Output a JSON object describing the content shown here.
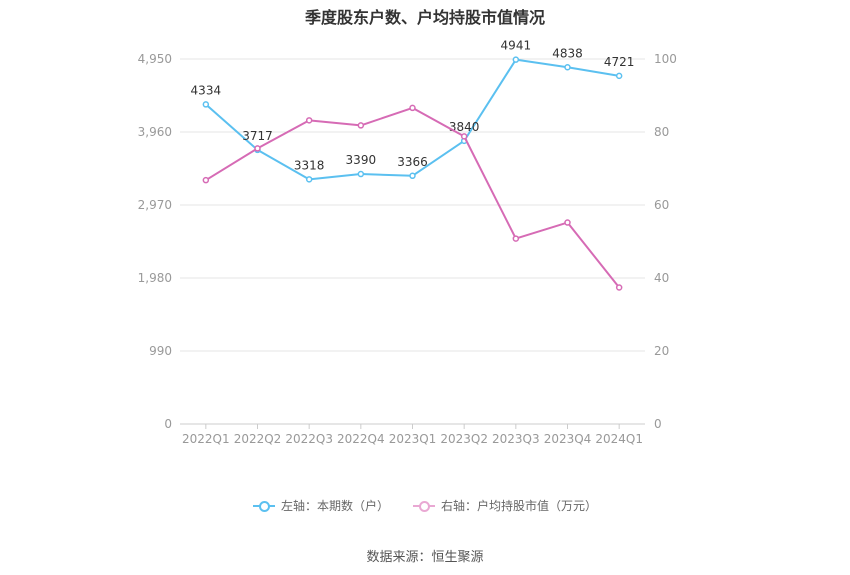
{
  "chart_data": {
    "type": "line",
    "title": "季度股东户数、户均持股市值情况",
    "categories": [
      "2022Q1",
      "2022Q2",
      "2022Q3",
      "2022Q4",
      "2023Q1",
      "2023Q2",
      "2023Q3",
      "2023Q4",
      "2024Q1"
    ],
    "left_axis": {
      "ticks": [
        "0",
        "990",
        "1,980",
        "2,970",
        "3,960",
        "4,950"
      ],
      "min": 0,
      "max": 4950
    },
    "right_axis": {
      "ticks": [
        "0",
        "20",
        "40",
        "60",
        "80",
        "100"
      ],
      "min": 0,
      "max": 100
    },
    "grid": true,
    "legend_position": "bottom",
    "series": [
      {
        "name": "左轴：本期数（户）",
        "axis": "left",
        "color": "#5bc0f0",
        "values": [
          4334,
          3717,
          3318,
          3390,
          3366,
          3840,
          4941,
          4838,
          4721
        ],
        "labels": [
          "4334",
          "3717",
          "3318",
          "3390",
          "3366",
          "3840",
          "4941",
          "4838",
          "4721"
        ]
      },
      {
        "name": "右轴：户均持股市值（万元）",
        "axis": "right",
        "color": "#d66bb5",
        "values": [
          66.8,
          75.5,
          83.2,
          81.8,
          86.6,
          78.8,
          50.8,
          55.2,
          37.4
        ]
      }
    ]
  },
  "source": "数据来源：恒生聚源"
}
